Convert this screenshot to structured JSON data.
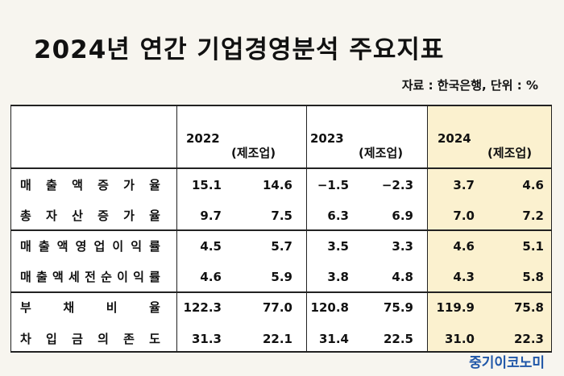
{
  "title": "2024년 연간 기업경영분석 주요지표",
  "source": "자료 : 한국은행, 단위 : %",
  "brand": "중기이코노미",
  "years": [
    {
      "year": "2022",
      "mfg": "(제조업)"
    },
    {
      "year": "2023",
      "mfg": "(제조업)"
    },
    {
      "year": "2024",
      "mfg": "(제조업)"
    }
  ],
  "rows": [
    {
      "label": [
        "매",
        "출",
        "액",
        "증",
        "가",
        "율"
      ],
      "values": [
        "15.1",
        "14.6",
        "−1.5",
        "−2.3",
        "3.7",
        "4.6"
      ]
    },
    {
      "label": [
        "총",
        "자",
        "산",
        "증",
        "가",
        "율"
      ],
      "values": [
        "9.7",
        "7.5",
        "6.3",
        "6.9",
        "7.0",
        "7.2"
      ]
    },
    {
      "label": [
        "매",
        "출",
        "액",
        "영",
        "업",
        "이",
        "익",
        "률"
      ],
      "values": [
        "4.5",
        "5.7",
        "3.5",
        "3.3",
        "4.6",
        "5.1"
      ]
    },
    {
      "label": [
        "매",
        "출",
        "액",
        "세",
        "전",
        "순",
        "이",
        "익",
        "률"
      ],
      "values": [
        "4.6",
        "5.9",
        "3.8",
        "4.8",
        "4.3",
        "5.8"
      ]
    },
    {
      "label": [
        "부",
        "채",
        "비",
        "율"
      ],
      "values": [
        "122.3",
        "77.0",
        "120.8",
        "75.9",
        "119.9",
        "75.8"
      ]
    },
    {
      "label": [
        "차",
        "입",
        "금",
        "의",
        "존",
        "도"
      ],
      "values": [
        "31.3",
        "22.1",
        "31.4",
        "22.5",
        "31.0",
        "22.3"
      ]
    }
  ],
  "colors": {
    "highlight": "#fbf1cf",
    "brand": "#1f56a8"
  }
}
